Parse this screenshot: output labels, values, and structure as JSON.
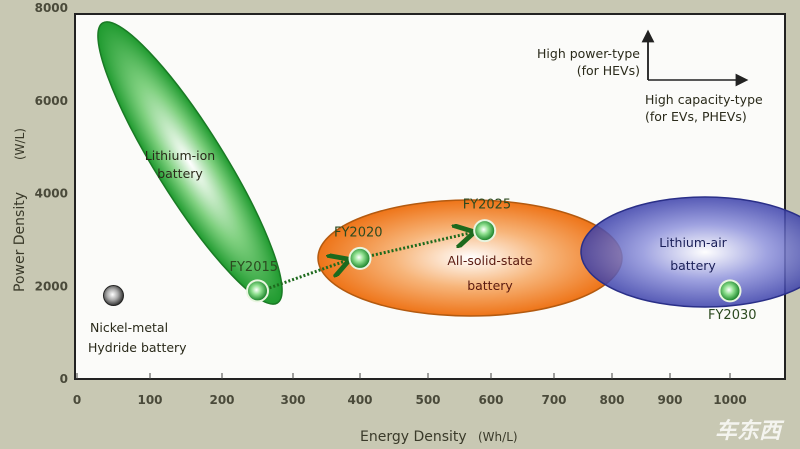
{
  "chart_data": {
    "type": "scatter",
    "xlabel": "Energy Density",
    "xunit": "(Wh/L)",
    "ylabel": "Power Density",
    "yunit": "(W/L)",
    "xlim": [
      0,
      1000
    ],
    "ylim": [
      0,
      8000
    ],
    "xticks": [
      "0",
      "100",
      "200",
      "300",
      "400",
      "500",
      "600",
      "700",
      "800",
      "900",
      "1000"
    ],
    "yticks": [
      "0",
      "2000",
      "4000",
      "6000",
      "8000"
    ],
    "regions": [
      {
        "name": "Lithium-ion battery",
        "line1": "Lithium-ion",
        "line2": "battery",
        "color": "#2aa23a"
      },
      {
        "name": "All-solid-state battery",
        "line1": "All-solid-state",
        "line2": "battery",
        "color": "#f07a1e"
      },
      {
        "name": "Lithium-air battery",
        "line1": "Lithium-air",
        "line2": "battery",
        "color": "#3a3fa8"
      }
    ],
    "points": [
      {
        "label": "FY2015",
        "x": 250,
        "y": 1900
      },
      {
        "label": "FY2020",
        "x": 400,
        "y": 2600
      },
      {
        "label": "FY2025",
        "x": 590,
        "y": 3200
      },
      {
        "label": "FY2030",
        "x": 1000,
        "y": 1900
      }
    ],
    "nickel": {
      "line1": "Nickel-metal",
      "line2": "Hydride battery",
      "x": 50,
      "y": 1800,
      "color": "#888888"
    },
    "arrows": [
      [
        "FY2015",
        "FY2020"
      ],
      [
        "FY2020",
        "FY2025"
      ]
    ],
    "legend": {
      "vertical_line1": "High power-type",
      "vertical_line2": "(for HEVs)",
      "horizontal_line1": "High capacity-type",
      "horizontal_line2": "(for EVs, PHEVs)",
      "placement": "top-right"
    }
  },
  "watermark": "车东西"
}
